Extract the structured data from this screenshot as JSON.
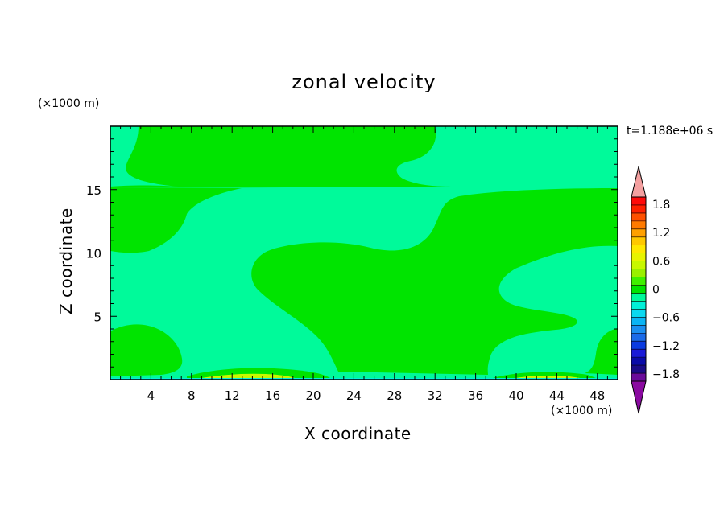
{
  "chart_data": {
    "type": "heatmap",
    "title": "zonal velocity",
    "xlabel": "X coordinate",
    "ylabel": "Z coordinate",
    "x_unit": "(×1000 m)",
    "y_unit": "(×1000 m)",
    "time_label": "t=1.188e+06 s",
    "xlim": [
      0,
      50
    ],
    "ylim": [
      0,
      20
    ],
    "x_ticks": [
      4,
      8,
      12,
      16,
      20,
      24,
      28,
      32,
      36,
      40,
      44,
      48
    ],
    "y_ticks": [
      5,
      10,
      15
    ],
    "colorbar": {
      "levels": [
        -2.1,
        -1.95,
        -1.8,
        -1.65,
        -1.5,
        -1.35,
        -1.2,
        -1.05,
        -0.9,
        -0.75,
        -0.6,
        -0.45,
        -0.3,
        -0.15,
        0,
        0.15,
        0.3,
        0.45,
        0.6,
        0.75,
        0.9,
        1.05,
        1.2,
        1.35,
        1.5,
        1.65,
        1.8,
        1.95,
        2.1
      ],
      "colors": [
        "#6a0a9a",
        "#1a0a88",
        "#0a0aa8",
        "#1a1ad8",
        "#0a3ae0",
        "#1a6ae8",
        "#1a8ef0",
        "#0ab4f4",
        "#0ad8f0",
        "#00f0d8",
        "#00fa9a",
        "#00e400",
        "#40f000",
        "#9af000",
        "#c8f800",
        "#e8f400",
        "#ffe800",
        "#ffc800",
        "#ffa000",
        "#ff7a00",
        "#ff5000",
        "#ff2000",
        "#ff0a0a"
      ],
      "max_arrow_color": "#f4a0a0",
      "min_arrow_color": "#8a0aa0",
      "labels": [
        "1.8",
        "1.2",
        "0.6",
        "0",
        "-0.6",
        "-1.2",
        "-1.8"
      ],
      "label_values": [
        1.8,
        1.2,
        0.6,
        0,
        -0.6,
        -1.2,
        -1.8
      ]
    },
    "regions": {
      "zero_to_0.15": {
        "color": "#00fa9a",
        "description_value_range": [
          -0.15,
          0
        ]
      },
      "positive_0_to_0.15": {
        "color": "#00e400",
        "description_value_range": [
          0,
          0.15
        ]
      },
      "positive_near_bottom": {
        "color": "#c8f800",
        "description_value_range": [
          0.3,
          0.45
        ]
      }
    },
    "grid": false,
    "legend": "colorbar right"
  }
}
